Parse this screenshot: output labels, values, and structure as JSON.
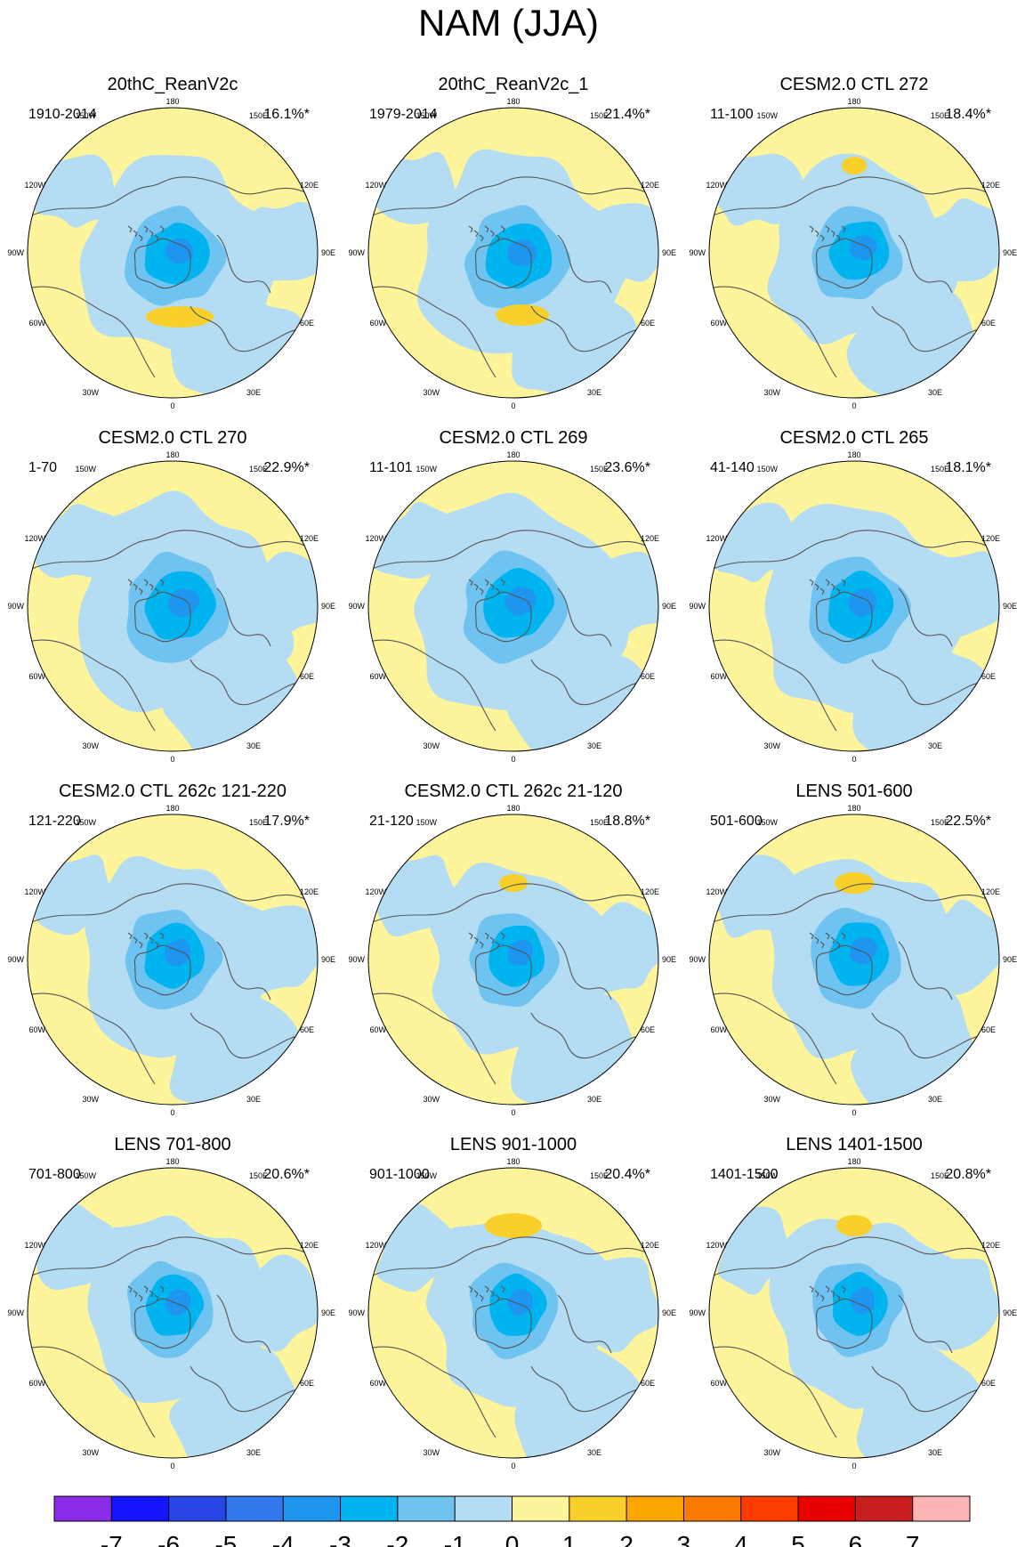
{
  "title": "NAM (JJA)",
  "colors": {
    "ocean_pos": "#fdf49c",
    "neg1": "#b4dcf2",
    "neg2": "#6fc3f0",
    "neg3": "#00b4f0",
    "neg4": "#1e96f0",
    "pos2": "#f9d02a",
    "coast": "#555555"
  },
  "lon_labels": {
    "top": "180",
    "bottom": "0",
    "w150": "150W",
    "e150": "150E",
    "w120": "120W",
    "e120": "120E",
    "w90": "90W",
    "e90": "90E",
    "w60": "60W",
    "e60": "60E",
    "w30": "30W",
    "e30": "30E"
  },
  "panels": [
    {
      "title": "20thC_ReanV2c",
      "period": "1910-2014",
      "variance": "16.1%*"
    },
    {
      "title": "20thC_ReanV2c_1",
      "period": "1979-2014",
      "variance": "21.4%*"
    },
    {
      "title": "CESM2.0 CTL 272",
      "period": "11-100",
      "variance": "18.4%*"
    },
    {
      "title": "CESM2.0 CTL 270",
      "period": "1-70",
      "variance": "22.9%*"
    },
    {
      "title": "CESM2.0 CTL 269",
      "period": "11-101",
      "variance": "23.6%*"
    },
    {
      "title": "CESM2.0 CTL 265",
      "period": "41-140",
      "variance": "18.1%*"
    },
    {
      "title": "CESM2.0 CTL 262c 121-220",
      "period": "121-220",
      "variance": "17.9%*"
    },
    {
      "title": "CESM2.0 CTL 262c 21-120",
      "period": "21-120",
      "variance": "18.8%*"
    },
    {
      "title": "LENS 501-600",
      "period": "501-600",
      "variance": "22.5%*"
    },
    {
      "title": "LENS 701-800",
      "period": "701-800",
      "variance": "20.6%*"
    },
    {
      "title": "LENS 901-1000",
      "period": "901-1000",
      "variance": "20.4%*"
    },
    {
      "title": "LENS 1401-1500",
      "period": "1401-1500",
      "variance": "20.8%*"
    }
  ],
  "chart_data": {
    "type": "heatmap",
    "title": "NAM (JJA)",
    "projection": "north-polar-stereographic",
    "colorbar": {
      "levels": [
        -7,
        -6,
        -5,
        -4,
        -3,
        -2,
        -1,
        0,
        1,
        2,
        3,
        4,
        5,
        6,
        7
      ],
      "tick_labels": [
        "-7",
        "-6",
        "-5",
        "-4",
        "-3",
        "-2",
        "-1",
        "0",
        "1",
        "2",
        "3",
        "4",
        "5",
        "6",
        "7"
      ],
      "colors": [
        "#8a2be8",
        "#1414ff",
        "#2846e6",
        "#3278ec",
        "#1e96f0",
        "#00b4f0",
        "#6fc3f0",
        "#b4dcf2",
        "#fdf49c",
        "#f9d02a",
        "#fda500",
        "#fb7a00",
        "#ff3c00",
        "#e60000",
        "#c81e1e",
        "#fdb4b4"
      ]
    },
    "panels": [
      {
        "title": "20thC_ReanV2c",
        "period": "1910-2014",
        "explained_variance_pct": 16.1,
        "significant": true
      },
      {
        "title": "20thC_ReanV2c_1",
        "period": "1979-2014",
        "explained_variance_pct": 21.4,
        "significant": true
      },
      {
        "title": "CESM2.0 CTL 272",
        "period": "11-100",
        "explained_variance_pct": 18.4,
        "significant": true
      },
      {
        "title": "CESM2.0 CTL 270",
        "period": "1-70",
        "explained_variance_pct": 22.9,
        "significant": true
      },
      {
        "title": "CESM2.0 CTL 269",
        "period": "11-101",
        "explained_variance_pct": 23.6,
        "significant": true
      },
      {
        "title": "CESM2.0 CTL 265",
        "period": "41-140",
        "explained_variance_pct": 18.1,
        "significant": true
      },
      {
        "title": "CESM2.0 CTL 262c 121-220",
        "period": "121-220",
        "explained_variance_pct": 17.9,
        "significant": true
      },
      {
        "title": "CESM2.0 CTL 262c 21-120",
        "period": "21-120",
        "explained_variance_pct": 18.8,
        "significant": true
      },
      {
        "title": "LENS 501-600",
        "period": "501-600",
        "explained_variance_pct": 22.5,
        "significant": true
      },
      {
        "title": "LENS 701-800",
        "period": "701-800",
        "explained_variance_pct": 20.6,
        "significant": true
      },
      {
        "title": "LENS 901-1000",
        "period": "901-1000",
        "explained_variance_pct": 20.4,
        "significant": true
      },
      {
        "title": "LENS 1401-1500",
        "period": "1401-1500",
        "explained_variance_pct": 20.8,
        "significant": true
      }
    ]
  }
}
